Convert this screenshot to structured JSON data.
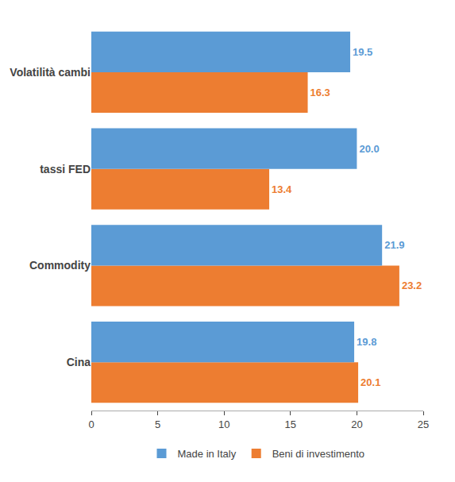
{
  "chart_data": {
    "type": "bar",
    "orientation": "horizontal",
    "categories": [
      "Cina",
      "Commodity",
      "tassi FED",
      "Volatilità cambi"
    ],
    "series": [
      {
        "name": "Made in Italy",
        "color": "#5B9BD5",
        "values": [
          19.8,
          21.9,
          20.0,
          19.5
        ],
        "value_labels": [
          "19.8",
          "21.9",
          "20.0",
          "19.5"
        ]
      },
      {
        "name": "Beni di investimento",
        "color": "#ED7D31",
        "values": [
          20.1,
          23.2,
          13.4,
          16.3
        ],
        "value_labels": [
          "20.1",
          "23.2",
          "13.4",
          "16.3"
        ]
      }
    ],
    "xlim": [
      0,
      25
    ],
    "xticks": [
      0,
      5,
      10,
      15,
      20,
      25
    ],
    "data_labels": true,
    "grid": false,
    "legend": "bottom"
  }
}
